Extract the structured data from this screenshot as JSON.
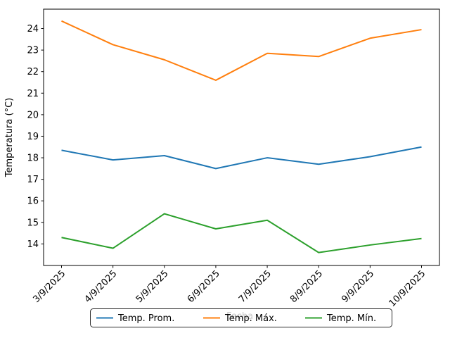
{
  "chart_data": {
    "type": "line",
    "title": "",
    "xlabel": "Fecha",
    "ylabel": "Temperatura (°C)",
    "categories": [
      "3/9/2025",
      "4/9/2025",
      "5/9/2025",
      "6/9/2025",
      "7/9/2025",
      "8/9/2025",
      "9/9/2025",
      "10/9/2025"
    ],
    "series": [
      {
        "name": "Temp. Prom.",
        "color": "#1f77b4",
        "values": [
          18.35,
          17.9,
          18.1,
          17.5,
          18.0,
          17.7,
          18.05,
          18.5
        ]
      },
      {
        "name": "Temp. Máx.",
        "color": "#ff7f0e",
        "values": [
          24.35,
          23.25,
          22.55,
          21.6,
          22.85,
          22.7,
          23.55,
          23.95
        ]
      },
      {
        "name": "Temp. Mín.",
        "color": "#2ca02c",
        "values": [
          14.3,
          13.8,
          15.4,
          14.7,
          15.1,
          13.6,
          13.95,
          14.25
        ]
      }
    ],
    "y_ticks": [
      14,
      15,
      16,
      17,
      18,
      19,
      20,
      21,
      22,
      23,
      24
    ],
    "ylim": [
      13.0,
      24.9
    ],
    "grid": false,
    "legend_position": "lower center, below axes",
    "x_tick_rotation_deg": 45,
    "axis_color": "#000000",
    "legend_border_color": "#2b2b2b",
    "xlabel_faint_color": "#c9c9c9"
  }
}
